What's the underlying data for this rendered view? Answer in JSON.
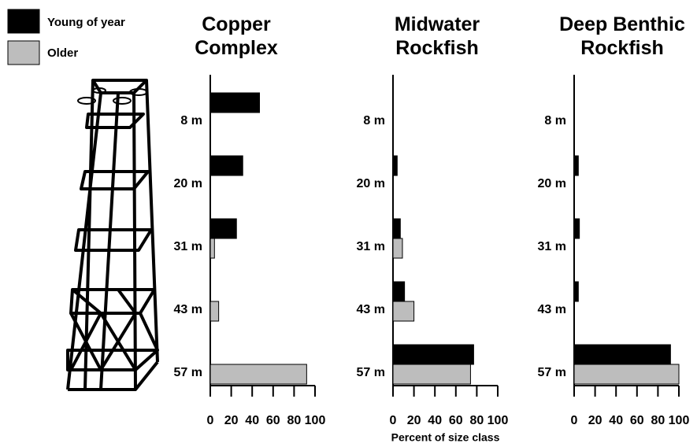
{
  "chart_data": [
    {
      "type": "bar",
      "orientation": "horizontal",
      "title": "Copper Complex",
      "categories": [
        "8 m",
        "20 m",
        "31 m",
        "43 m",
        "57 m"
      ],
      "series": [
        {
          "name": "Young of year",
          "color": "#000000",
          "values": [
            47,
            31,
            25,
            null,
            null
          ]
        },
        {
          "name": "Older",
          "color": "#bdbdbd",
          "values": [
            null,
            null,
            4,
            8,
            92
          ]
        }
      ],
      "xlim": [
        0,
        100
      ],
      "xticks": [
        0,
        20,
        40,
        60,
        80,
        100
      ]
    },
    {
      "type": "bar",
      "orientation": "horizontal",
      "title": "Midwater Rockfish",
      "categories": [
        "8 m",
        "20 m",
        "31 m",
        "43 m",
        "57 m"
      ],
      "series": [
        {
          "name": "Young of year",
          "color": "#000000",
          "values": [
            null,
            4,
            7,
            11,
            77
          ]
        },
        {
          "name": "Older",
          "color": "#bdbdbd",
          "values": [
            null,
            null,
            9,
            20,
            74
          ]
        }
      ],
      "xlim": [
        0,
        100
      ],
      "xticks": [
        0,
        20,
        40,
        60,
        80,
        100
      ],
      "xlabel": "Percent of size class"
    },
    {
      "type": "bar",
      "orientation": "horizontal",
      "title": "Deep Benthic Rockfish",
      "categories": [
        "8 m",
        "20 m",
        "31 m",
        "43 m",
        "57 m"
      ],
      "series": [
        {
          "name": "Young of year",
          "color": "#000000",
          "values": [
            null,
            4,
            5,
            4,
            92
          ]
        },
        {
          "name": "Older",
          "color": "#bdbdbd",
          "values": [
            null,
            null,
            null,
            null,
            100
          ]
        }
      ],
      "xlim": [
        0,
        100
      ],
      "xticks": [
        0,
        20,
        40,
        60,
        80,
        100
      ]
    }
  ]
}
